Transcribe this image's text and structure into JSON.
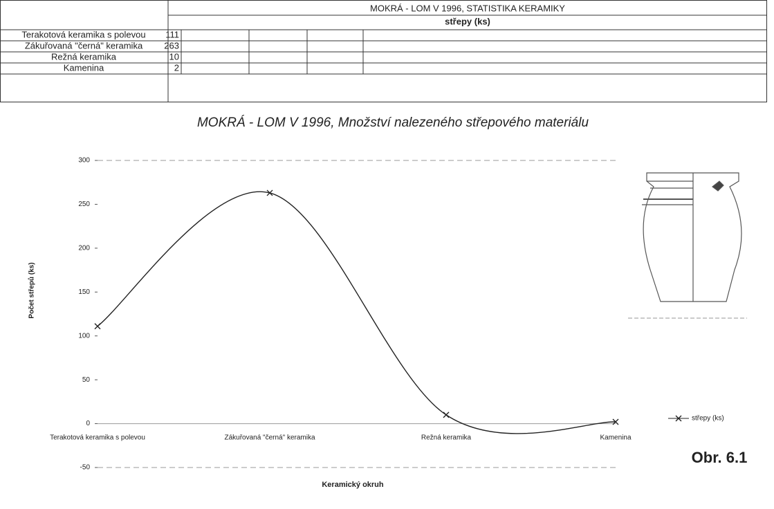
{
  "table": {
    "title": "MOKRÁ - LOM V 1996, STATISTIKA KERAMIKY",
    "column_header": "střepy (ks)",
    "rows": [
      [
        "Terakotová keramika s polevou",
        "111"
      ],
      [
        "Zákuřovaná \"černá\" keramika",
        "263"
      ],
      [
        "Režná keramika",
        "10"
      ],
      [
        "Kamenina",
        "2"
      ]
    ]
  },
  "chart_data": {
    "type": "line",
    "title": "MOKRÁ - LOM V  1996, Množství nalezeného střepového materiálu",
    "x_label": "Keramický okruh",
    "y_label": "Počet střepů (ks)",
    "categories": [
      "Terakotová keramika s polevou",
      "Zákuřovaná \"černá\" keramika",
      "Režná keramika",
      "Kamenina"
    ],
    "series": [
      {
        "name": "střepy (ks)",
        "color": "#222222",
        "values": [
          111,
          263,
          10,
          2
        ]
      }
    ],
    "ylim": [
      -50,
      300
    ],
    "yticks": [
      -50,
      0,
      50,
      100,
      150,
      200,
      250,
      300
    ],
    "legend": "right"
  },
  "figure_label": "Obr. 6.1"
}
